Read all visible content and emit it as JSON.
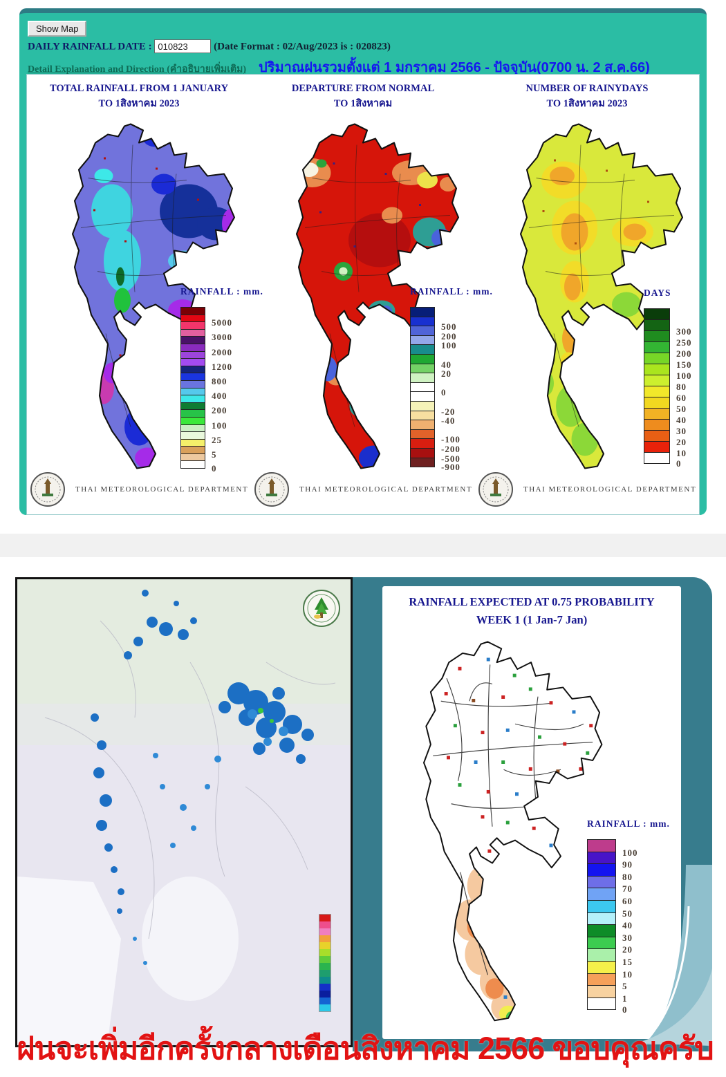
{
  "header": {
    "show_map": "Show Map",
    "date_label": "DAILY RAINFALL DATE :",
    "date_value": "010823",
    "date_note": "(Date Format : 02/Aug/2023 is : 020823)",
    "detail_link": "Detail Explanation and Direction (คำอธิบายเพิ่มเติม)",
    "thai_title": "ปริมาณฝนรวมตั้งแต่ 1 มกราคม 2566 - ปัจจุบัน(0700 น. 2 ส.ค.66)"
  },
  "maps": {
    "footer": "THAI METEOROLOGICAL DEPARTMENT",
    "legend_title_rain": "RAINFALL : mm.",
    "legend_title_days": "DAYS",
    "total": {
      "title1": "TOTAL RAINFALL FROM 1 JANUARY",
      "title2": "TO 1สิงหาคม 2023",
      "legend": [
        {
          "c": "#7a0005",
          "l": ""
        },
        {
          "c": "#e30613",
          "l": "5000"
        },
        {
          "c": "#f2356b",
          "l": ""
        },
        {
          "c": "#e2609f",
          "l": "3000"
        },
        {
          "c": "#4a1168",
          "l": ""
        },
        {
          "c": "#8a2bbe",
          "l": "2000"
        },
        {
          "c": "#9c45dc",
          "l": ""
        },
        {
          "c": "#a34bf0",
          "l": "1200"
        },
        {
          "c": "#15247d",
          "l": ""
        },
        {
          "c": "#1a35e0",
          "l": "800"
        },
        {
          "c": "#6a74df",
          "l": ""
        },
        {
          "c": "#55c9ec",
          "l": "400"
        },
        {
          "c": "#3de8e8",
          "l": ""
        },
        {
          "c": "#0e7c32",
          "l": "200"
        },
        {
          "c": "#27c348",
          "l": ""
        },
        {
          "c": "#3be83b",
          "l": "100"
        },
        {
          "c": "#cbefc4",
          "l": ""
        },
        {
          "c": "#e9f8dc",
          "l": "25"
        },
        {
          "c": "#f5f06a",
          "l": ""
        },
        {
          "c": "#d9a05b",
          "l": "5"
        },
        {
          "c": "#edc9a0",
          "l": ""
        },
        {
          "c": "#ffffff",
          "l": "0"
        }
      ]
    },
    "departure": {
      "title1": "DEPARTURE FROM NORMAL",
      "title2": "TO 1สิงหาคม",
      "legend": [
        {
          "c": "#071e78",
          "l": ""
        },
        {
          "c": "#1830d0",
          "l": "500"
        },
        {
          "c": "#5064d8",
          "l": "200"
        },
        {
          "c": "#93a7ea",
          "l": "100"
        },
        {
          "c": "#188c8c",
          "l": ""
        },
        {
          "c": "#1fa832",
          "l": "40"
        },
        {
          "c": "#74d266",
          "l": "20"
        },
        {
          "c": "#cff2c2",
          "l": ""
        },
        {
          "c": "#ffffff",
          "l": "0"
        },
        {
          "c": "#ffffff",
          "l": ""
        },
        {
          "c": "#f5f2b8",
          "l": "-20"
        },
        {
          "c": "#f7dfa0",
          "l": "-40"
        },
        {
          "c": "#efb070",
          "l": ""
        },
        {
          "c": "#e2622a",
          "l": "-100"
        },
        {
          "c": "#d81e10",
          "l": "-200"
        },
        {
          "c": "#a81010",
          "l": "-500"
        },
        {
          "c": "#6e2020",
          "l": "-900"
        }
      ]
    },
    "rainydays": {
      "title1": "NUMBER OF RAINYDAYS",
      "title2": "TO 1สิงหาคม 2023",
      "legend": [
        {
          "c": "#0a3d0a",
          "l": ""
        },
        {
          "c": "#146414",
          "l": "300"
        },
        {
          "c": "#1f8c1f",
          "l": "250"
        },
        {
          "c": "#33b533",
          "l": "200"
        },
        {
          "c": "#77d627",
          "l": "150"
        },
        {
          "c": "#aae51e",
          "l": "100"
        },
        {
          "c": "#cdef2e",
          "l": "80"
        },
        {
          "c": "#f2e82a",
          "l": "60"
        },
        {
          "c": "#f2d820",
          "l": "50"
        },
        {
          "c": "#f2b224",
          "l": "40"
        },
        {
          "c": "#ee8c1e",
          "l": "30"
        },
        {
          "c": "#e85f14",
          "l": "20"
        },
        {
          "c": "#e8220a",
          "l": "10"
        },
        {
          "c": "#ffffff",
          "l": "0"
        }
      ]
    }
  },
  "bottom": {
    "title1": "RAINFALL EXPECTED AT 0.75 PROBABILITY",
    "title2": "WEEK 1 (1 Jan-7 Jan)",
    "legend_title": "RAINFALL : mm.",
    "legend": [
      {
        "c": "#be3c8c",
        "l": "100"
      },
      {
        "c": "#4814c8",
        "l": "90"
      },
      {
        "c": "#1414f0",
        "l": "80"
      },
      {
        "c": "#6e6ee8",
        "l": "70"
      },
      {
        "c": "#70a3f5",
        "l": "60"
      },
      {
        "c": "#3cc8f0",
        "l": "50"
      },
      {
        "c": "#b4f0fa",
        "l": "40"
      },
      {
        "c": "#0e8c28",
        "l": "30"
      },
      {
        "c": "#3ccc50",
        "l": "20"
      },
      {
        "c": "#aaf0aa",
        "l": "15"
      },
      {
        "c": "#f5f04a",
        "l": "10"
      },
      {
        "c": "#f5a05a",
        "l": "5"
      },
      {
        "c": "#f8d2a0",
        "l": "1"
      },
      {
        "c": "#ffffff",
        "l": "0"
      }
    ],
    "radar_colors": [
      "#d81818",
      "#ee4e8c",
      "#f07ec0",
      "#f2a03c",
      "#e8d22a",
      "#a8de2a",
      "#5ecc3a",
      "#2ab44e",
      "#1e9e6e",
      "#0e8c8c",
      "#1430c8",
      "#0a1e9e",
      "#1464d2",
      "#2ac8e8"
    ],
    "caption": "ฝนจะเพิ่มอีกครั้งกลางเดือนสิงหาคม 2566 ขอบคุณครับ"
  }
}
